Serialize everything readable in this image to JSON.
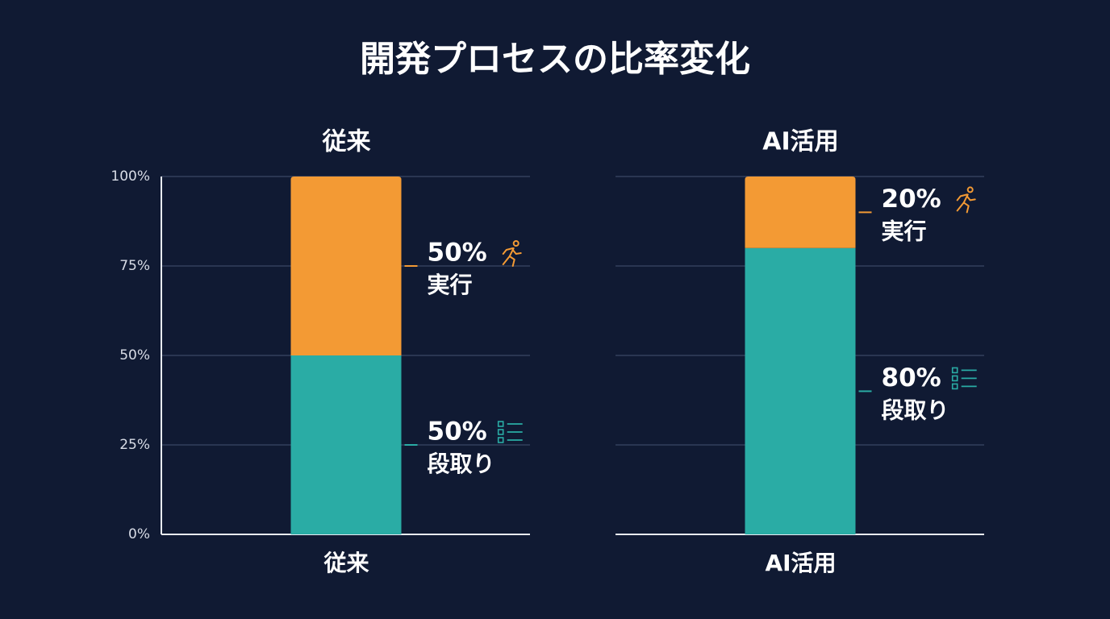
{
  "title": "開発プロセスの比率変化",
  "chart_data": [
    {
      "type": "bar",
      "stacked": true,
      "title": "従来",
      "categories": [
        "従来"
      ],
      "series": [
        {
          "name": "段取り",
          "color": "#2aaca5",
          "values": [
            50
          ],
          "value_labels": [
            "50%"
          ]
        },
        {
          "name": "実行",
          "color": "#f39a34",
          "values": [
            50
          ],
          "value_labels": [
            "50%"
          ]
        }
      ],
      "ylim": [
        0,
        100
      ],
      "yticks": [
        {
          "value": 0,
          "label": "0%"
        },
        {
          "value": 25,
          "label": "25%"
        },
        {
          "value": 50,
          "label": "50%"
        },
        {
          "value": 75,
          "label": "75%"
        },
        {
          "value": 100,
          "label": "100%"
        }
      ],
      "show_tick_labels": true,
      "grid": true
    },
    {
      "type": "bar",
      "stacked": true,
      "title": "AI活用",
      "categories": [
        "AI活用"
      ],
      "series": [
        {
          "name": "段取り",
          "color": "#2aaca5",
          "values": [
            80
          ],
          "value_labels": [
            "80%"
          ]
        },
        {
          "name": "実行",
          "color": "#f39a34",
          "values": [
            20
          ],
          "value_labels": [
            "20%"
          ]
        }
      ],
      "ylim": [
        0,
        100
      ],
      "yticks": [
        0,
        25,
        50,
        75,
        100
      ],
      "show_tick_labels": false,
      "grid": true
    }
  ]
}
